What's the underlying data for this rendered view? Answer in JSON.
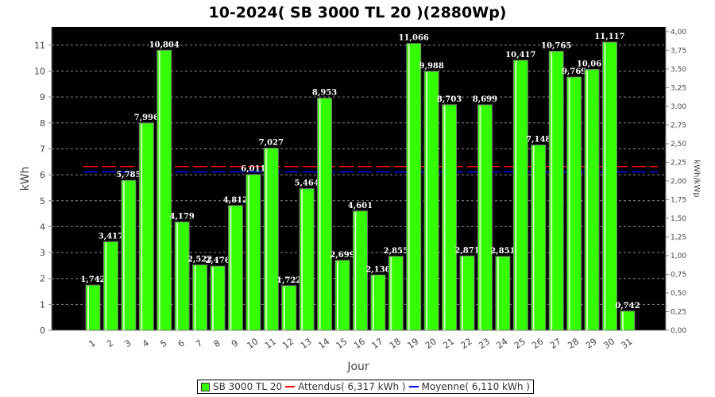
{
  "chart_data": {
    "type": "bar",
    "title": "10-2024( SB 3000 TL 20 )(2880Wp)",
    "xlabel": "Jour",
    "ylabel": "kWh",
    "ylabel_right": "kWh/kWp",
    "ylim": [
      0,
      11.7
    ],
    "ylim_right": [
      0,
      4.0625
    ],
    "yticks": [
      0,
      1,
      2,
      3,
      4,
      5,
      6,
      7,
      8,
      9,
      10,
      11
    ],
    "yticks_right": [
      "0,00",
      "0,25",
      "0,50",
      "0,75",
      "1,00",
      "1,25",
      "1,50",
      "1,75",
      "2,00",
      "2,25",
      "2,50",
      "2,75",
      "3,00",
      "3,25",
      "3,50",
      "3,75",
      "4,00"
    ],
    "kwp": 2.88,
    "categories": [
      "1",
      "2",
      "3",
      "4",
      "5",
      "6",
      "7",
      "8",
      "9",
      "10",
      "11",
      "12",
      "13",
      "14",
      "15",
      "16",
      "17",
      "18",
      "19",
      "20",
      "21",
      "22",
      "23",
      "24",
      "25",
      "26",
      "27",
      "28",
      "29",
      "30",
      "31"
    ],
    "series": [
      {
        "name": "SB 3000 TL 20",
        "color": "#33ff00",
        "values": [
          1.742,
          3.417,
          5.785,
          7.996,
          10.804,
          4.179,
          2.522,
          2.476,
          4.812,
          6.011,
          7.027,
          1.722,
          5.464,
          8.953,
          2.699,
          4.601,
          2.136,
          2.855,
          11.066,
          9.988,
          8.703,
          2.871,
          8.699,
          2.851,
          10.417,
          7.148,
          10.765,
          9.769,
          10.066,
          11.117,
          0.742
        ],
        "labels": [
          "1,742",
          "3,417",
          "5,785",
          "7,996",
          "10,804",
          "4,179",
          "2,522",
          "2,476",
          "4,812",
          "6,011",
          "7,027",
          "1,722",
          "5,464",
          "8,953",
          "2,699",
          "4,601",
          "2,136",
          "2,855",
          "11,066",
          "9,988",
          "8,703",
          "2,871",
          "8,699",
          "2,851",
          "10,417",
          "7,148",
          "10,765",
          "9,769",
          "10,066",
          "11,117",
          "0,742"
        ]
      }
    ],
    "reference_lines": [
      {
        "name": "Attendus",
        "value": 6.317,
        "color": "#ff0000"
      },
      {
        "name": "Moyenne",
        "value": 6.11,
        "color": "#0000ff"
      }
    ],
    "legend": {
      "position": "bottom",
      "items": [
        "SB 3000 TL 20",
        "Attendus( 6,317 kWh )",
        "Moyenne( 6,110 kWh )"
      ]
    },
    "grid": true
  }
}
